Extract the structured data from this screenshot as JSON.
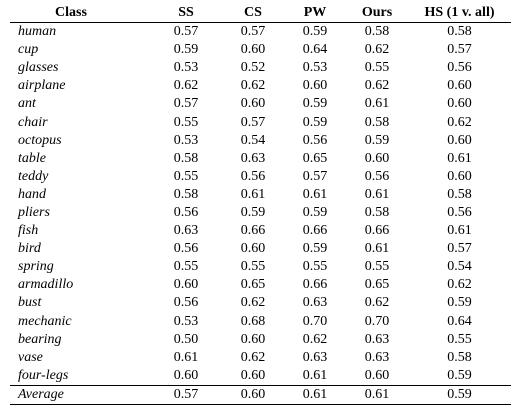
{
  "table": {
    "headers": [
      "Class",
      "SS",
      "CS",
      "PW",
      "Ours",
      "HS (1 v. all)"
    ],
    "rows": [
      {
        "label": "human",
        "values": [
          "0.57",
          "0.57",
          "0.59",
          "0.58",
          "0.58"
        ]
      },
      {
        "label": "cup",
        "values": [
          "0.59",
          "0.60",
          "0.64",
          "0.62",
          "0.57"
        ]
      },
      {
        "label": "glasses",
        "values": [
          "0.53",
          "0.52",
          "0.53",
          "0.55",
          "0.56"
        ]
      },
      {
        "label": "airplane",
        "values": [
          "0.62",
          "0.62",
          "0.60",
          "0.62",
          "0.60"
        ]
      },
      {
        "label": "ant",
        "values": [
          "0.57",
          "0.60",
          "0.59",
          "0.61",
          "0.60"
        ]
      },
      {
        "label": "chair",
        "values": [
          "0.55",
          "0.57",
          "0.59",
          "0.58",
          "0.62"
        ]
      },
      {
        "label": "octopus",
        "values": [
          "0.53",
          "0.54",
          "0.56",
          "0.59",
          "0.60"
        ]
      },
      {
        "label": "table",
        "values": [
          "0.58",
          "0.63",
          "0.65",
          "0.60",
          "0.61"
        ]
      },
      {
        "label": "teddy",
        "values": [
          "0.55",
          "0.56",
          "0.57",
          "0.56",
          "0.60"
        ]
      },
      {
        "label": "hand",
        "values": [
          "0.58",
          "0.61",
          "0.61",
          "0.61",
          "0.58"
        ]
      },
      {
        "label": "pliers",
        "values": [
          "0.56",
          "0.59",
          "0.59",
          "0.58",
          "0.56"
        ]
      },
      {
        "label": "fish",
        "values": [
          "0.63",
          "0.66",
          "0.66",
          "0.66",
          "0.61"
        ]
      },
      {
        "label": "bird",
        "values": [
          "0.56",
          "0.60",
          "0.59",
          "0.61",
          "0.57"
        ]
      },
      {
        "label": "spring",
        "values": [
          "0.55",
          "0.55",
          "0.55",
          "0.55",
          "0.54"
        ]
      },
      {
        "label": "armadillo",
        "values": [
          "0.60",
          "0.65",
          "0.66",
          "0.65",
          "0.62"
        ]
      },
      {
        "label": "bust",
        "values": [
          "0.56",
          "0.62",
          "0.63",
          "0.62",
          "0.59"
        ]
      },
      {
        "label": "mechanic",
        "values": [
          "0.53",
          "0.68",
          "0.70",
          "0.70",
          "0.64"
        ]
      },
      {
        "label": "bearing",
        "values": [
          "0.50",
          "0.60",
          "0.62",
          "0.63",
          "0.55"
        ]
      },
      {
        "label": "vase",
        "values": [
          "0.61",
          "0.62",
          "0.63",
          "0.63",
          "0.58"
        ]
      },
      {
        "label": "four-legs",
        "values": [
          "0.60",
          "0.60",
          "0.61",
          "0.60",
          "0.59"
        ]
      }
    ],
    "average": {
      "label": "Average",
      "values": [
        "0.57",
        "0.60",
        "0.61",
        "0.61",
        "0.59"
      ]
    }
  }
}
